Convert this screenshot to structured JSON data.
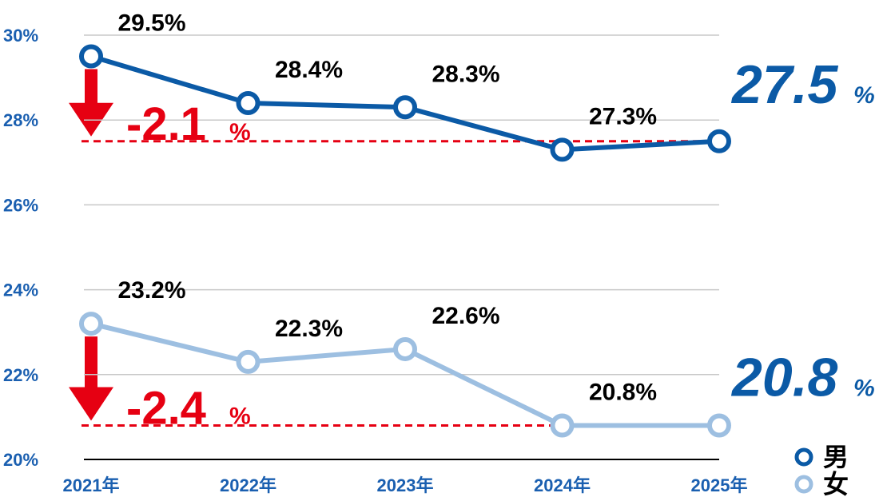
{
  "chart_data": {
    "type": "line",
    "categories": [
      "2021年",
      "2022年",
      "2023年",
      "2024年",
      "2025年"
    ],
    "series": [
      {
        "name": "男",
        "color": "#0b5aa6",
        "values": [
          29.5,
          28.4,
          28.3,
          27.3,
          27.5
        ],
        "value_labels": [
          "29.5%",
          "28.4%",
          "28.3%",
          "27.3%",
          null
        ]
      },
      {
        "name": "女",
        "color": "#9dbfe1",
        "values": [
          23.2,
          22.3,
          22.6,
          20.8,
          20.8
        ],
        "value_labels": [
          "23.2%",
          "22.3%",
          "22.6%",
          "20.8%",
          null
        ]
      }
    ],
    "unit": "%",
    "annotations": [
      {
        "text": "-2.1",
        "color": "#e60012"
      },
      {
        "text": "-2.4",
        "color": "#e60012"
      }
    ],
    "ylim": [
      20,
      30
    ],
    "yticks": [
      {
        "value": 20,
        "label": "20%"
      },
      {
        "value": 22,
        "label": "22%"
      },
      {
        "value": 24,
        "label": "24%"
      },
      {
        "value": 26,
        "label": "26%"
      },
      {
        "value": 28,
        "label": "28%"
      },
      {
        "value": 30,
        "label": "30%"
      }
    ],
    "grid": true,
    "legend": "lower right"
  }
}
